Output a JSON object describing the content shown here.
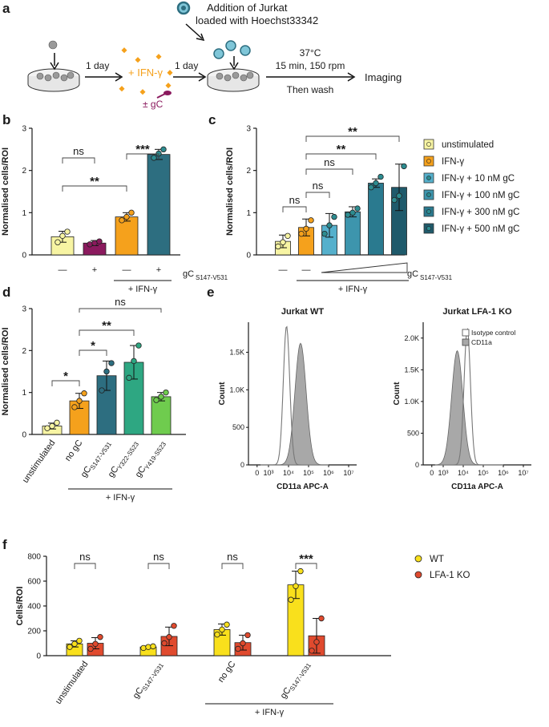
{
  "panels": {
    "a": "a",
    "b": "b",
    "c": "c",
    "d": "d",
    "e": "e",
    "f": "f"
  },
  "schematic": {
    "addition_line1": "Addition of Jurkat",
    "addition_line2": "loaded with Hoechst33342",
    "day1": "1 day",
    "day2": "1 day",
    "ifn": "+ IFN-γ",
    "gc": "± gC",
    "temp": "37°C",
    "cond": "15 min, 150 rpm",
    "wash": "Then wash",
    "imaging": "Imaging"
  },
  "colors": {
    "unstim": "#f7f4a3",
    "purple": "#8b1a5e",
    "orange": "#f5a11c",
    "teal_dark": "#2d6e80",
    "blue1": "#55b0cc",
    "blue2": "#3d95ad",
    "blue3": "#2a7a8f",
    "blue4": "#1f5a6b",
    "green1": "#2ea782",
    "green2": "#6fcc4e",
    "yellow": "#f9e01c",
    "red": "#e04a2e",
    "dot_teal": "#2d8c90"
  },
  "chart_data": [
    {
      "id": "b",
      "type": "bar",
      "ylabel": "Normalised cells/ROI",
      "ylim": [
        0,
        3
      ],
      "yticks": [
        "0",
        "1",
        "2",
        "3"
      ],
      "categories": [
        "—",
        "+",
        "—",
        "+"
      ],
      "values": [
        0.43,
        0.28,
        0.9,
        2.38
      ],
      "errors": [
        0.13,
        0.06,
        0.1,
        0.12
      ],
      "points": [
        [
          0.3,
          0.45,
          0.55
        ],
        [
          0.25,
          0.28,
          0.32
        ],
        [
          0.82,
          0.9,
          1.0
        ],
        [
          2.3,
          2.4,
          2.5
        ]
      ],
      "x_axis_label": "gCS147-V531",
      "x_axis_main": "gC",
      "x_axis_sub": "S147-V531",
      "group_label": "+ IFN-γ",
      "significance": [
        {
          "from": 0,
          "to": 1,
          "label": "ns"
        },
        {
          "from": 2,
          "to": 3,
          "label": "***"
        },
        {
          "from": 0,
          "to": 2,
          "label": "**"
        }
      ]
    },
    {
      "id": "c",
      "type": "bar",
      "ylabel": "Normalised cells/ROI",
      "ylim": [
        0,
        3
      ],
      "yticks": [
        "0",
        "1",
        "2",
        "3"
      ],
      "categories": [
        "—",
        "—",
        "",
        "",
        "",
        ""
      ],
      "values": [
        0.32,
        0.65,
        0.7,
        1.02,
        1.7,
        1.6
      ],
      "errors": [
        0.15,
        0.2,
        0.28,
        0.12,
        0.1,
        0.55
      ],
      "points": [
        [
          0.2,
          0.3,
          0.45
        ],
        [
          0.5,
          0.62,
          0.82
        ],
        [
          0.5,
          0.7,
          0.9
        ],
        [
          0.95,
          1.0,
          1.1
        ],
        [
          1.6,
          1.7,
          1.85
        ],
        [
          1.3,
          1.4,
          2.1
        ]
      ],
      "legend": [
        "unstimulated",
        "IFN-γ",
        "IFN-γ + 10 nM gC",
        "IFN-γ + 100 nM gC",
        "IFN-γ + 300 nM gC",
        "IFN-γ + 500 nM gC"
      ],
      "x_axis_label": "gCS147-V531",
      "x_axis_main": "gC",
      "x_axis_sub": "S147-V531",
      "group_label": "+ IFN-γ",
      "significance": [
        {
          "from": 0,
          "to": 1,
          "label": "ns"
        },
        {
          "from": 1,
          "to": 2,
          "label": "ns"
        },
        {
          "from": 1,
          "to": 3,
          "label": "ns"
        },
        {
          "from": 1,
          "to": 4,
          "label": "**"
        },
        {
          "from": 1,
          "to": 5,
          "label": "**"
        }
      ]
    },
    {
      "id": "d",
      "type": "bar",
      "ylabel": "Normalised cells/ROI",
      "ylim": [
        0,
        3
      ],
      "yticks": [
        "0",
        "1",
        "2",
        "3"
      ],
      "categories": [
        "unstimulated",
        "no gC",
        "gCS147-V531",
        "gCY322-S523",
        "gCY419-S523"
      ],
      "cat_main": [
        "unstimulated",
        "no gC",
        "gC",
        "gC",
        "gC"
      ],
      "cat_sub": [
        "",
        "",
        "S147-V531",
        "Y322-S523",
        "Y419-S523"
      ],
      "values": [
        0.2,
        0.8,
        1.4,
        1.72,
        0.9
      ],
      "errors": [
        0.07,
        0.18,
        0.35,
        0.4,
        0.1
      ],
      "points": [
        [
          0.15,
          0.2,
          0.28
        ],
        [
          0.65,
          0.8,
          0.98
        ],
        [
          1.05,
          1.5,
          1.7
        ],
        [
          1.35,
          1.75,
          2.12
        ],
        [
          0.82,
          0.9,
          1.0
        ]
      ],
      "group_label": "+ IFN-γ",
      "significance": [
        {
          "from": 0,
          "to": 1,
          "label": "*"
        },
        {
          "from": 1,
          "to": 2,
          "label": "*"
        },
        {
          "from": 1,
          "to": 3,
          "label": "**"
        },
        {
          "from": 1,
          "to": 4,
          "label": "ns"
        }
      ]
    },
    {
      "id": "e1",
      "type": "histogram",
      "title": "Jurkat WT",
      "ylabel": "Count",
      "xlabel": "CD11a APC-A",
      "yticks": [
        "0",
        "500",
        "1.0K",
        "1.5K"
      ],
      "ylim": [
        0,
        1900
      ],
      "xticks": [
        "0",
        "10³",
        "10⁴",
        "10⁵",
        "10⁶",
        "10⁷"
      ],
      "isotype_peak": 3.9,
      "isotype_height": 1850,
      "cd11a_peak": 4.6,
      "cd11a_height": 1620
    },
    {
      "id": "e2",
      "type": "histogram",
      "title": "Jurkat LFA-1 KO",
      "ylabel": "Count",
      "xlabel": "CD11a APC-A",
      "yticks": [
        "0",
        "500",
        "1.0K",
        "1.5K",
        "2.0K"
      ],
      "ylim": [
        0,
        2250
      ],
      "xticks": [
        "0",
        "10³",
        "10⁴",
        "10⁵",
        "10⁶",
        "10⁷"
      ],
      "legend": [
        "Isotype control",
        "CD11a"
      ],
      "isotype_peak": 4.2,
      "isotype_height": 2150,
      "cd11a_peak": 3.7,
      "cd11a_height": 1800
    },
    {
      "id": "f",
      "type": "bar",
      "ylabel": "Cells/ROI",
      "ylim": [
        0,
        800
      ],
      "yticks": [
        "0",
        "200",
        "400",
        "600",
        "800"
      ],
      "categories": [
        "unstimulated",
        "gCS147-V531",
        "no gC",
        "gCS147-V531"
      ],
      "cat_main": [
        "unstimulated",
        "gC",
        "no gC",
        "gC"
      ],
      "cat_sub": [
        "",
        "S147-V531",
        "",
        "S147-V531"
      ],
      "series": [
        {
          "name": "WT",
          "values": [
            95,
            70,
            210,
            570
          ],
          "errors": [
            25,
            8,
            45,
            110
          ],
          "points": [
            [
              70,
              95,
              120
            ],
            [
              62,
              70,
              75
            ],
            [
              170,
              210,
              250
            ],
            [
              450,
              560,
              680
            ]
          ]
        },
        {
          "name": "LFA-1 KO",
          "values": [
            100,
            155,
            105,
            160
          ],
          "errors": [
            45,
            75,
            60,
            140
          ],
          "points": [
            [
              55,
              95,
              150
            ],
            [
              100,
              150,
              240
            ],
            [
              55,
              100,
              165
            ],
            [
              40,
              110,
              300
            ]
          ]
        }
      ],
      "group_label": "+ IFN-γ",
      "significance": [
        "ns",
        "ns",
        "ns",
        "***"
      ]
    }
  ]
}
